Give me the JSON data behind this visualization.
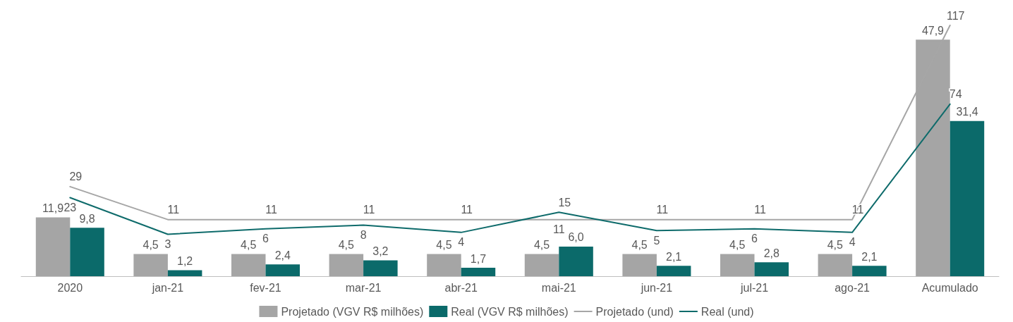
{
  "chart_data": {
    "type": "bar",
    "categories": [
      "2020",
      "jan-21",
      "fev-21",
      "mar-21",
      "abr-21",
      "mai-21",
      "jun-21",
      "jul-21",
      "ago-21",
      "Acumulado"
    ],
    "series": [
      {
        "name": "Projetado (VGV R$ milhões)",
        "color": "#a5a5a5",
        "values": [
          11.9,
          4.5,
          4.5,
          4.5,
          4.5,
          4.5,
          4.5,
          4.5,
          4.5,
          47.9
        ],
        "value_labels": [
          "11,9",
          "4,5",
          "4,5",
          "4,5",
          "4,5",
          "4,5",
          "4,5",
          "4,5",
          "4,5",
          "47,9"
        ]
      },
      {
        "name": "Real (VGV R$ milhões)",
        "color": "#0b6a6a",
        "values": [
          9.8,
          1.2,
          2.4,
          3.2,
          1.7,
          6.0,
          2.1,
          2.8,
          2.1,
          31.4
        ],
        "value_labels": [
          "9,8",
          "1,2",
          "2,4",
          "3,2",
          "1,7",
          "6,0",
          "2,1",
          "2,8",
          "2,1",
          "31,4"
        ]
      },
      {
        "name": "Projetado (und)",
        "type": "line",
        "axis": "y2",
        "color": "#a6a6a6",
        "values": [
          29,
          11,
          11,
          11,
          11,
          11,
          11,
          11,
          11,
          117
        ],
        "value_labels": [
          "29",
          "11",
          "11",
          "11",
          "11",
          "11",
          "11",
          "11",
          "11",
          "117"
        ]
      },
      {
        "name": "Real (und)",
        "type": "line",
        "axis": "y2",
        "color": "#0e6b6b",
        "values": [
          23,
          3,
          6,
          8,
          4,
          15,
          5,
          6,
          4,
          74
        ],
        "value_labels": [
          "23",
          "3",
          "6",
          "8",
          "4",
          "15",
          "5",
          "6",
          "4",
          "74"
        ]
      }
    ],
    "legend": "bottom",
    "grid": false,
    "marker": "none",
    "line_style": "solid"
  }
}
